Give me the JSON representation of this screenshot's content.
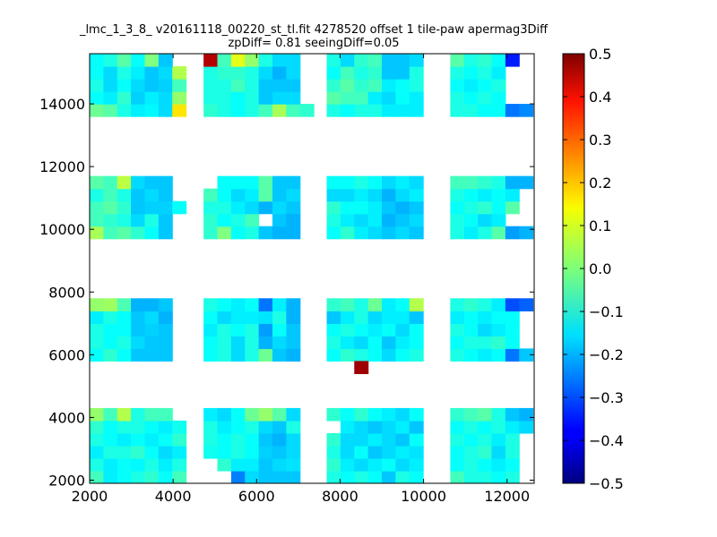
{
  "chart_data": {
    "type": "heatmap",
    "title": "_lmc_1_3_8_ v20161118_00220_st_tl.fit 4278520 offset 1 tile-paw apermag3Diff",
    "subtitle": "zpDiff= 0.81 seeingDiff=0.05",
    "xlim": [
      2000,
      12650
    ],
    "ylim": [
      1900,
      15600
    ],
    "xticks": [
      "2000",
      "4000",
      "6000",
      "8000",
      "10000",
      "12000"
    ],
    "yticks": [
      "2000",
      "4000",
      "6000",
      "8000",
      "10000",
      "12000",
      "14000"
    ],
    "colorbar": {
      "vmin": -0.5,
      "vmax": 0.5,
      "colormap": "jet",
      "ticks": [
        "0.5",
        "0.4",
        "0.3",
        "0.2",
        "0.1",
        "0.0",
        "−0.1",
        "−0.2",
        "−0.3",
        "−0.4",
        "−0.5"
      ]
    },
    "cell_size": [
      330,
      400
    ],
    "row_bottoms": [
      1900,
      2300,
      2700,
      3100,
      3500,
      3900,
      5800,
      6200,
      6600,
      7000,
      7400,
      9700,
      10100,
      10500,
      10900,
      11300,
      13600,
      14000,
      14400,
      14800,
      15200
    ],
    "blocks": [
      {
        "x": [
          2000,
          2330,
          2660,
          2990,
          3320,
          3650,
          3980
        ],
        "rows": [
          [
            -0.06,
            -0.14,
            -0.12,
            -0.1,
            -0.08,
            -0.12,
            -0.06
          ],
          [
            -0.1,
            -0.14,
            -0.12,
            -0.13,
            -0.1,
            -0.14,
            -0.1
          ],
          [
            -0.14,
            -0.1,
            -0.1,
            -0.08,
            -0.12,
            -0.16,
            -0.14
          ],
          [
            -0.1,
            -0.12,
            -0.14,
            -0.12,
            -0.14,
            -0.12,
            -0.08
          ],
          [
            -0.08,
            -0.12,
            -0.1,
            -0.1,
            -0.12,
            -0.14,
            -0.11
          ],
          [
            0.02,
            -0.06,
            0.05,
            -0.1,
            -0.06,
            -0.06,
            null
          ],
          [
            -0.12,
            -0.08,
            -0.12,
            -0.18,
            -0.18,
            -0.18,
            null
          ],
          [
            -0.1,
            -0.12,
            -0.1,
            -0.16,
            -0.18,
            -0.18,
            null
          ],
          [
            -0.1,
            -0.12,
            -0.12,
            -0.18,
            -0.17,
            -0.18,
            null
          ],
          [
            -0.14,
            -0.1,
            -0.12,
            -0.18,
            -0.16,
            -0.2,
            null
          ],
          [
            0.02,
            0.03,
            -0.05,
            -0.2,
            -0.2,
            -0.18,
            null
          ],
          [
            0.04,
            -0.06,
            -0.04,
            -0.08,
            -0.12,
            -0.18,
            null
          ],
          [
            -0.06,
            -0.08,
            -0.1,
            -0.16,
            -0.1,
            -0.18,
            null
          ],
          [
            -0.06,
            -0.04,
            -0.08,
            -0.18,
            -0.17,
            -0.17,
            -0.12
          ],
          [
            -0.1,
            -0.06,
            -0.1,
            -0.18,
            -0.16,
            -0.18,
            null
          ],
          [
            -0.04,
            -0.06,
            0.06,
            -0.16,
            -0.18,
            -0.18,
            null
          ],
          [
            -0.02,
            -0.04,
            -0.1,
            -0.14,
            -0.13,
            -0.16,
            0.15
          ],
          [
            -0.12,
            -0.14,
            -0.08,
            -0.17,
            -0.14,
            -0.16,
            0.02
          ],
          [
            -0.1,
            -0.16,
            -0.12,
            -0.16,
            -0.18,
            -0.17,
            -0.06
          ],
          [
            -0.12,
            -0.16,
            -0.1,
            -0.14,
            -0.18,
            -0.16,
            0.05
          ],
          [
            -0.12,
            -0.1,
            -0.04,
            -0.12,
            0.0,
            -0.18,
            null
          ]
        ]
      },
      {
        "x": [
          4730,
          5060,
          5390,
          5720,
          6050,
          6380,
          6710,
          7040
        ],
        "rows": [
          [
            null,
            null,
            -0.25,
            -0.16,
            -0.18,
            -0.18,
            -0.18,
            null
          ],
          [
            null,
            -0.08,
            -0.14,
            -0.14,
            -0.18,
            -0.16,
            -0.15,
            null
          ],
          [
            -0.11,
            -0.12,
            -0.1,
            -0.12,
            -0.17,
            -0.18,
            -0.16,
            null
          ],
          [
            -0.1,
            -0.12,
            -0.1,
            -0.12,
            -0.18,
            -0.2,
            -0.16,
            null
          ],
          [
            -0.1,
            -0.14,
            -0.12,
            -0.1,
            -0.16,
            -0.18,
            -0.1,
            null
          ],
          [
            -0.14,
            -0.16,
            -0.12,
            -0.02,
            0.02,
            -0.04,
            -0.16,
            null
          ],
          [
            -0.12,
            -0.1,
            -0.16,
            -0.1,
            -0.02,
            -0.18,
            -0.2,
            null
          ],
          [
            -0.12,
            -0.1,
            -0.16,
            -0.1,
            -0.2,
            -0.16,
            -0.18,
            null
          ],
          [
            -0.14,
            -0.1,
            -0.12,
            -0.1,
            -0.22,
            -0.12,
            -0.18,
            null
          ],
          [
            -0.12,
            -0.16,
            -0.14,
            -0.14,
            -0.15,
            -0.1,
            -0.2,
            null
          ],
          [
            -0.1,
            -0.12,
            -0.14,
            -0.12,
            -0.26,
            -0.14,
            -0.2,
            null
          ],
          [
            -0.08,
            0.0,
            -0.12,
            -0.1,
            -0.18,
            -0.2,
            -0.2,
            null
          ],
          [
            -0.08,
            -0.12,
            -0.1,
            -0.06,
            null,
            -0.18,
            -0.2,
            null
          ],
          [
            -0.1,
            -0.1,
            -0.14,
            -0.16,
            -0.2,
            -0.16,
            -0.18,
            null
          ],
          [
            -0.06,
            -0.12,
            -0.16,
            -0.14,
            -0.04,
            -0.18,
            -0.16,
            null
          ],
          [
            null,
            -0.12,
            -0.12,
            -0.12,
            -0.04,
            -0.18,
            -0.18,
            null
          ],
          [
            -0.08,
            -0.1,
            -0.12,
            -0.1,
            -0.06,
            0.04,
            -0.06,
            -0.08
          ],
          [
            -0.1,
            -0.1,
            -0.12,
            -0.1,
            -0.18,
            -0.16,
            -0.16,
            null
          ],
          [
            -0.1,
            -0.1,
            -0.06,
            -0.1,
            -0.18,
            -0.18,
            -0.18,
            null
          ],
          [
            -0.1,
            -0.08,
            -0.08,
            -0.1,
            -0.16,
            -0.2,
            -0.16,
            null
          ],
          [
            0.45,
            -0.06,
            0.1,
            0.02,
            -0.1,
            -0.16,
            -0.16,
            null
          ]
        ]
      },
      {
        "x": [
          7680,
          8010,
          8340,
          8670,
          9000,
          9330,
          9660
        ],
        "rows": [
          [
            -0.1,
            -0.12,
            -0.1,
            -0.12,
            -0.18,
            -0.1,
            -0.12
          ],
          [
            -0.08,
            -0.14,
            -0.16,
            -0.14,
            -0.12,
            -0.16,
            -0.14
          ],
          [
            -0.1,
            -0.16,
            -0.12,
            -0.18,
            -0.16,
            -0.14,
            -0.15
          ],
          [
            -0.08,
            -0.16,
            -0.16,
            -0.14,
            -0.16,
            -0.18,
            -0.12
          ],
          [
            null,
            -0.14,
            -0.16,
            -0.18,
            -0.16,
            -0.14,
            -0.18
          ],
          [
            -0.08,
            -0.12,
            -0.08,
            -0.12,
            -0.14,
            -0.16,
            -0.12
          ],
          [
            -0.12,
            -0.08,
            -0.1,
            -0.12,
            -0.16,
            -0.12,
            -0.1
          ],
          [
            -0.1,
            -0.14,
            -0.16,
            -0.12,
            -0.18,
            -0.14,
            -0.12
          ],
          [
            -0.12,
            -0.1,
            -0.12,
            -0.14,
            -0.12,
            -0.16,
            -0.12
          ],
          [
            -0.18,
            -0.14,
            -0.1,
            -0.16,
            -0.14,
            -0.14,
            -0.18
          ],
          [
            -0.08,
            -0.06,
            -0.1,
            -0.02,
            -0.14,
            -0.12,
            0.05
          ],
          [
            -0.12,
            -0.08,
            -0.14,
            -0.16,
            -0.18,
            -0.16,
            -0.18
          ],
          [
            -0.1,
            -0.14,
            -0.16,
            -0.14,
            -0.2,
            -0.18,
            -0.16
          ],
          [
            -0.08,
            -0.12,
            -0.12,
            -0.14,
            -0.18,
            -0.2,
            -0.18
          ],
          [
            -0.16,
            -0.16,
            -0.14,
            -0.16,
            -0.2,
            -0.16,
            -0.14
          ],
          [
            -0.12,
            -0.12,
            -0.1,
            -0.12,
            -0.16,
            -0.14,
            -0.16
          ],
          [
            -0.1,
            -0.12,
            -0.1,
            -0.1,
            -0.14,
            -0.14,
            -0.14
          ],
          [
            -0.04,
            -0.06,
            -0.06,
            -0.14,
            -0.16,
            -0.12,
            -0.14
          ],
          [
            -0.08,
            -0.04,
            -0.08,
            -0.06,
            -0.14,
            -0.12,
            -0.1
          ],
          [
            -0.12,
            -0.06,
            -0.1,
            -0.08,
            -0.18,
            -0.18,
            -0.1
          ],
          [
            -0.1,
            -0.16,
            -0.08,
            -0.06,
            -0.18,
            -0.18,
            -0.16
          ]
        ]
      },
      {
        "x": [
          10640,
          10970,
          11300,
          11630,
          11960,
          12290
        ],
        "rows": [
          [
            -0.06,
            -0.1,
            -0.1,
            -0.12,
            -0.1,
            null
          ],
          [
            -0.12,
            -0.1,
            -0.12,
            -0.14,
            -0.12,
            null
          ],
          [
            -0.12,
            -0.1,
            -0.08,
            -0.16,
            -0.1,
            null
          ],
          [
            -0.1,
            -0.12,
            -0.1,
            -0.14,
            -0.1,
            null
          ],
          [
            -0.12,
            -0.1,
            -0.12,
            -0.1,
            -0.14,
            -0.16
          ],
          [
            -0.08,
            -0.06,
            -0.04,
            -0.1,
            -0.18,
            -0.2
          ],
          [
            -0.1,
            -0.12,
            -0.14,
            -0.12,
            -0.26,
            -0.18
          ],
          [
            -0.12,
            -0.1,
            -0.1,
            -0.08,
            -0.12,
            null
          ],
          [
            -0.1,
            -0.12,
            -0.16,
            -0.14,
            -0.12,
            null
          ],
          [
            -0.14,
            -0.12,
            -0.14,
            -0.12,
            -0.12,
            null
          ],
          [
            -0.1,
            -0.08,
            -0.1,
            -0.14,
            -0.3,
            -0.28
          ],
          [
            -0.1,
            -0.14,
            -0.1,
            -0.04,
            -0.22,
            -0.2
          ],
          [
            -0.1,
            -0.12,
            -0.16,
            -0.14,
            null,
            null
          ],
          [
            -0.12,
            -0.1,
            -0.08,
            -0.12,
            -0.04,
            null
          ],
          [
            -0.1,
            -0.12,
            -0.14,
            -0.12,
            -0.14,
            null
          ],
          [
            -0.06,
            -0.06,
            -0.08,
            -0.1,
            -0.2,
            -0.2
          ],
          [
            -0.1,
            -0.1,
            -0.12,
            -0.12,
            -0.26,
            -0.24
          ],
          [
            -0.1,
            -0.12,
            -0.1,
            -0.12,
            null,
            null
          ],
          [
            -0.12,
            -0.14,
            -0.12,
            -0.1,
            null,
            null
          ],
          [
            -0.1,
            -0.12,
            -0.1,
            -0.14,
            null,
            null
          ],
          [
            -0.04,
            -0.1,
            -0.08,
            -0.12,
            -0.35,
            null
          ]
        ]
      }
    ],
    "extra_cells": [
      {
        "x": 8340,
        "y": 5400,
        "value": 0.47
      }
    ]
  }
}
